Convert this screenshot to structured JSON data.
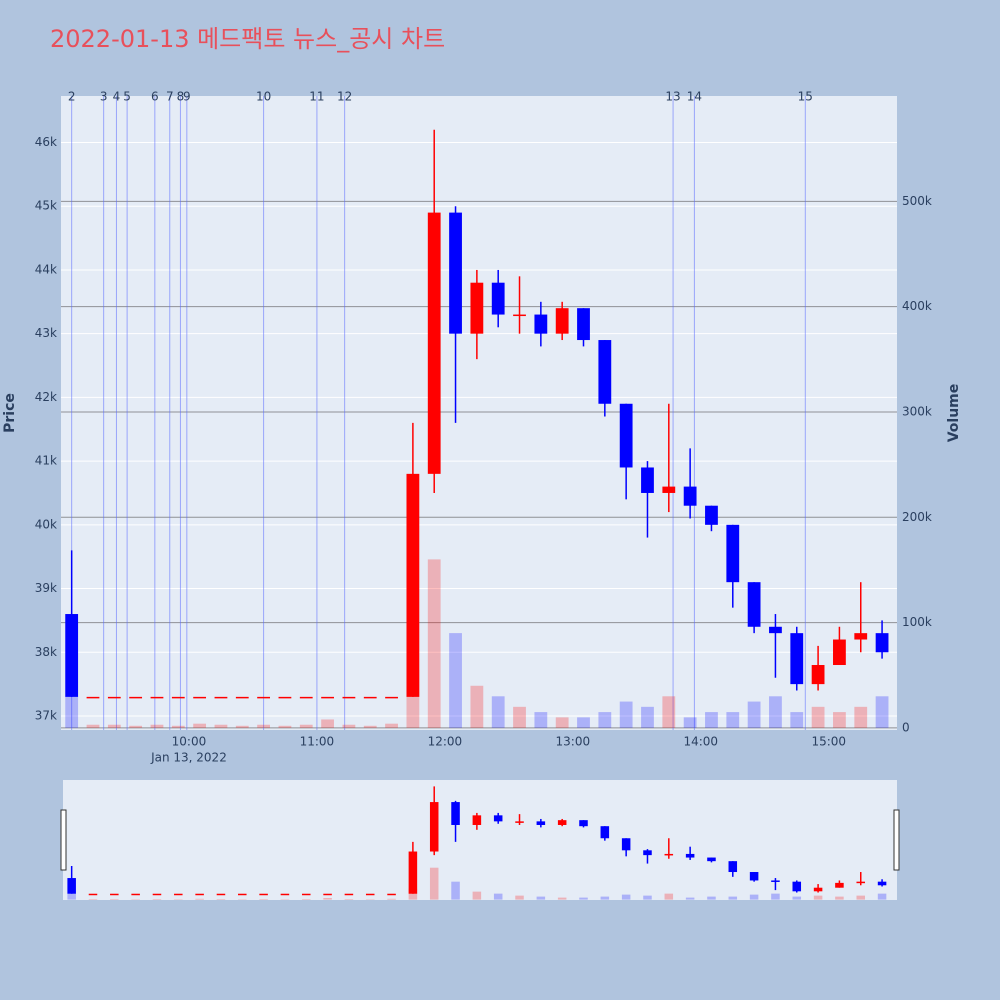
{
  "chart_data": {
    "type": "candlestick",
    "title": "2022-01-13 메드팩토 뉴스_공시 차트",
    "y_title": "Price",
    "y2_title": "Volume",
    "x_date_label": "Jan 13, 2022",
    "x": [
      "09:00",
      "09:10",
      "09:20",
      "09:30",
      "09:40",
      "09:50",
      "10:00",
      "10:10",
      "10:20",
      "10:30",
      "10:40",
      "10:50",
      "11:00",
      "11:10",
      "11:20",
      "11:30",
      "11:40",
      "11:50",
      "12:00",
      "12:10",
      "12:20",
      "12:30",
      "12:40",
      "12:50",
      "13:00",
      "13:10",
      "13:20",
      "13:30",
      "13:40",
      "13:50",
      "14:00",
      "14:10",
      "14:20",
      "14:30",
      "14:40",
      "14:50",
      "15:00",
      "15:10",
      "15:20"
    ],
    "open": [
      38600,
      37300,
      37300,
      37300,
      37300,
      37300,
      37300,
      37300,
      37300,
      37300,
      37300,
      37300,
      37300,
      37300,
      37300,
      37300,
      37300,
      40800,
      44900,
      43000,
      43800,
      43300,
      43300,
      43000,
      43400,
      42900,
      41900,
      40900,
      40500,
      40600,
      40300,
      40000,
      39100,
      38400,
      38300,
      37500,
      37800,
      38200,
      38300
    ],
    "high": [
      39600,
      37300,
      37300,
      37300,
      37300,
      37300,
      37300,
      37300,
      37300,
      37300,
      37300,
      37300,
      37300,
      37300,
      37300,
      37300,
      41600,
      46200,
      45000,
      44000,
      44000,
      43900,
      43500,
      43500,
      43400,
      42900,
      41900,
      41000,
      41900,
      41200,
      40300,
      40000,
      39100,
      38600,
      38400,
      38100,
      38400,
      39100,
      38500
    ],
    "low": [
      37300,
      37300,
      37300,
      37300,
      37300,
      37300,
      37300,
      37300,
      37300,
      37300,
      37300,
      37300,
      37300,
      37300,
      37300,
      37300,
      37300,
      40500,
      41600,
      42600,
      43100,
      43000,
      42800,
      42900,
      42800,
      41700,
      40400,
      39800,
      40200,
      40100,
      39900,
      38700,
      38300,
      37600,
      37400,
      37400,
      37800,
      38000,
      37900
    ],
    "close": [
      37300,
      37300,
      37300,
      37300,
      37300,
      37300,
      37300,
      37300,
      37300,
      37300,
      37300,
      37300,
      37300,
      37300,
      37300,
      37300,
      40800,
      44900,
      43000,
      43800,
      43300,
      43300,
      43000,
      43400,
      42900,
      41900,
      40900,
      40500,
      40600,
      40300,
      40000,
      39100,
      38400,
      38300,
      37500,
      37800,
      38200,
      38300,
      38000
    ],
    "volume": [
      30000,
      3000,
      3000,
      2000,
      3000,
      2000,
      4000,
      3000,
      2000,
      3000,
      2000,
      3000,
      8000,
      3000,
      2000,
      4000,
      55000,
      160000,
      90000,
      40000,
      30000,
      20000,
      15000,
      10000,
      10000,
      15000,
      25000,
      20000,
      30000,
      10000,
      15000,
      15000,
      25000,
      30000,
      15000,
      20000,
      15000,
      20000,
      30000
    ],
    "up_color": "#ff0000",
    "down_color": "#0000ff",
    "xlim": [
      "09:00",
      "15:32"
    ],
    "xticks": [
      "10:00",
      "11:00",
      "12:00",
      "13:00",
      "14:00",
      "15:00"
    ],
    "ylim": [
      36780,
      46730
    ],
    "yticks": [
      {
        "value": 37000,
        "label": "37k"
      },
      {
        "value": 38000,
        "label": "38k"
      },
      {
        "value": 39000,
        "label": "39k"
      },
      {
        "value": 40000,
        "label": "40k"
      },
      {
        "value": 41000,
        "label": "41k"
      },
      {
        "value": 42000,
        "label": "42k"
      },
      {
        "value": 43000,
        "label": "43k"
      },
      {
        "value": 44000,
        "label": "44k"
      },
      {
        "value": 45000,
        "label": "45k"
      },
      {
        "value": 46000,
        "label": "46k"
      }
    ],
    "y2lim": [
      -2000,
      600000
    ],
    "y2ticks": [
      0,
      {
        "value": 100000,
        "label": "100k"
      },
      {
        "value": 200000,
        "label": "200k"
      },
      {
        "value": 300000,
        "label": "300k"
      },
      {
        "value": 400000,
        "label": "400k"
      },
      {
        "value": 500000,
        "label": "500k"
      }
    ],
    "news": [
      {
        "label": "2",
        "time": "09:05"
      },
      {
        "label": "3",
        "time": "09:20"
      },
      {
        "label": "4",
        "time": "09:26"
      },
      {
        "label": "5",
        "time": "09:31"
      },
      {
        "label": "6",
        "time": "09:44"
      },
      {
        "label": "7",
        "time": "09:51"
      },
      {
        "label": "8",
        "time": "09:56"
      },
      {
        "label": "9",
        "time": "09:59"
      },
      {
        "label": "10",
        "time": "10:35"
      },
      {
        "label": "11",
        "time": "11:00"
      },
      {
        "label": "12",
        "time": "11:13"
      },
      {
        "label": "13",
        "time": "13:47"
      },
      {
        "label": "14",
        "time": "13:57"
      },
      {
        "label": "15",
        "time": "14:49"
      }
    ]
  }
}
